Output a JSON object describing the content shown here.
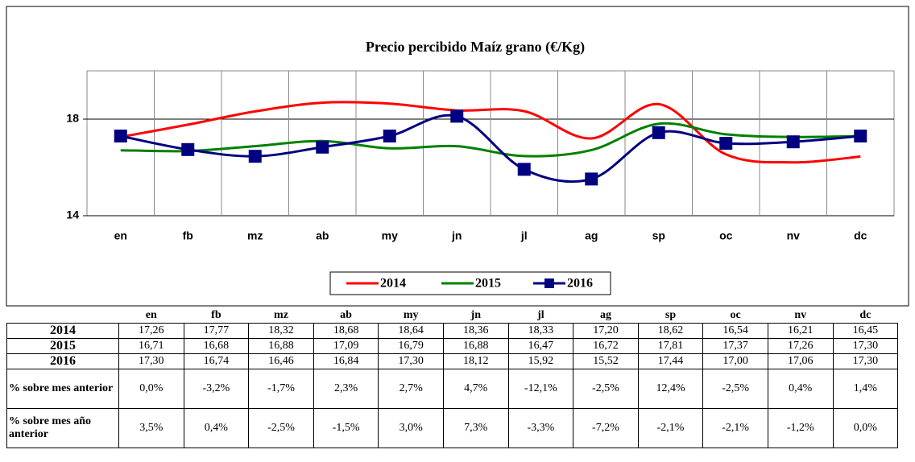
{
  "chart_data": {
    "type": "line",
    "title": "Precio percibido Maíz grano (€/Kg)",
    "categories": [
      "en",
      "fb",
      "mz",
      "ab",
      "my",
      "jn",
      "jl",
      "ag",
      "sp",
      "oc",
      "nv",
      "dc"
    ],
    "ylim": [
      14,
      20
    ],
    "yticks": [
      14,
      18
    ],
    "grid": true,
    "legend": "bottom",
    "series": [
      {
        "name": "2014",
        "color": "#ff0000",
        "values": [
          17.26,
          17.77,
          18.32,
          18.68,
          18.64,
          18.36,
          18.33,
          17.2,
          18.62,
          16.54,
          16.21,
          16.45
        ],
        "value_labels": [
          "17,26",
          "17,77",
          "18,32",
          "18,68",
          "18,64",
          "18,36",
          "18,33",
          "17,20",
          "18,62",
          "16,54",
          "16,21",
          "16,45"
        ]
      },
      {
        "name": "2015",
        "color": "#008000",
        "values": [
          16.71,
          16.68,
          16.88,
          17.09,
          16.79,
          16.88,
          16.47,
          16.72,
          17.81,
          17.37,
          17.26,
          17.3
        ],
        "value_labels": [
          "16,71",
          "16,68",
          "16,88",
          "17,09",
          "16,79",
          "16,88",
          "16,47",
          "16,72",
          "17,81",
          "17,37",
          "17,26",
          "17,30"
        ]
      },
      {
        "name": "2016",
        "color": "#000080",
        "marker": "square",
        "values": [
          17.3,
          16.74,
          16.46,
          16.84,
          17.3,
          18.12,
          15.92,
          15.52,
          17.44,
          17.0,
          17.06,
          17.3
        ],
        "value_labels": [
          "17,30",
          "16,74",
          "16,46",
          "16,84",
          "17,30",
          "18,12",
          "15,92",
          "15,52",
          "17,44",
          "17,00",
          "17,06",
          "17,30"
        ]
      }
    ]
  },
  "table": {
    "rows": [
      {
        "label": "% sobre mes anterior",
        "cells": [
          "0,0%",
          "-3,2%",
          "-1,7%",
          "2,3%",
          "2,7%",
          "4,7%",
          "-12,1%",
          "-2,5%",
          "12,4%",
          "-2,5%",
          "0,4%",
          "1,4%"
        ]
      },
      {
        "label": "% sobre mes año anterior",
        "cells": [
          "3,5%",
          "0,4%",
          "-2,5%",
          "-1,5%",
          "3,0%",
          "7,3%",
          "-3,3%",
          "-7,2%",
          "-2,1%",
          "-2,1%",
          "-1,2%",
          "0,0%"
        ]
      }
    ]
  }
}
